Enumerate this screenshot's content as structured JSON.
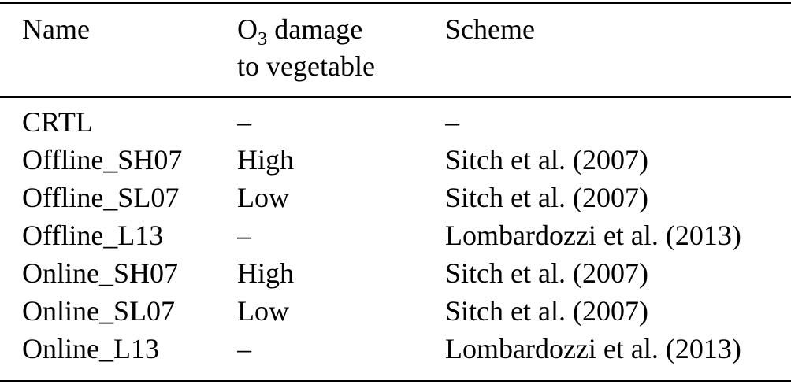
{
  "page": {
    "background": "#ffffff",
    "text_color": "#000000",
    "rule_color": "#000000"
  },
  "table": {
    "header": {
      "name": "Name",
      "o3_base": "O",
      "o3_sub": "3",
      "o3_tail": "damage",
      "o3_line2": "to vegetable",
      "scheme": "Scheme"
    },
    "rows": [
      {
        "name": "CRTL",
        "damage": "–",
        "scheme": "–"
      },
      {
        "name": "Offline_SH07",
        "damage": "High",
        "scheme": "Sitch et al. (2007)"
      },
      {
        "name": "Offline_SL07",
        "damage": "Low",
        "scheme": "Sitch et al. (2007)"
      },
      {
        "name": "Offline_L13",
        "damage": "–",
        "scheme": "Lombardozzi et al. (2013)"
      },
      {
        "name": "Online_SH07",
        "damage": "High",
        "scheme": "Sitch et al. (2007)"
      },
      {
        "name": "Online_SL07",
        "damage": "Low",
        "scheme": "Sitch et al. (2007)"
      },
      {
        "name": "Online_L13",
        "damage": "–",
        "scheme": "Lombardozzi et al. (2013)"
      }
    ]
  }
}
